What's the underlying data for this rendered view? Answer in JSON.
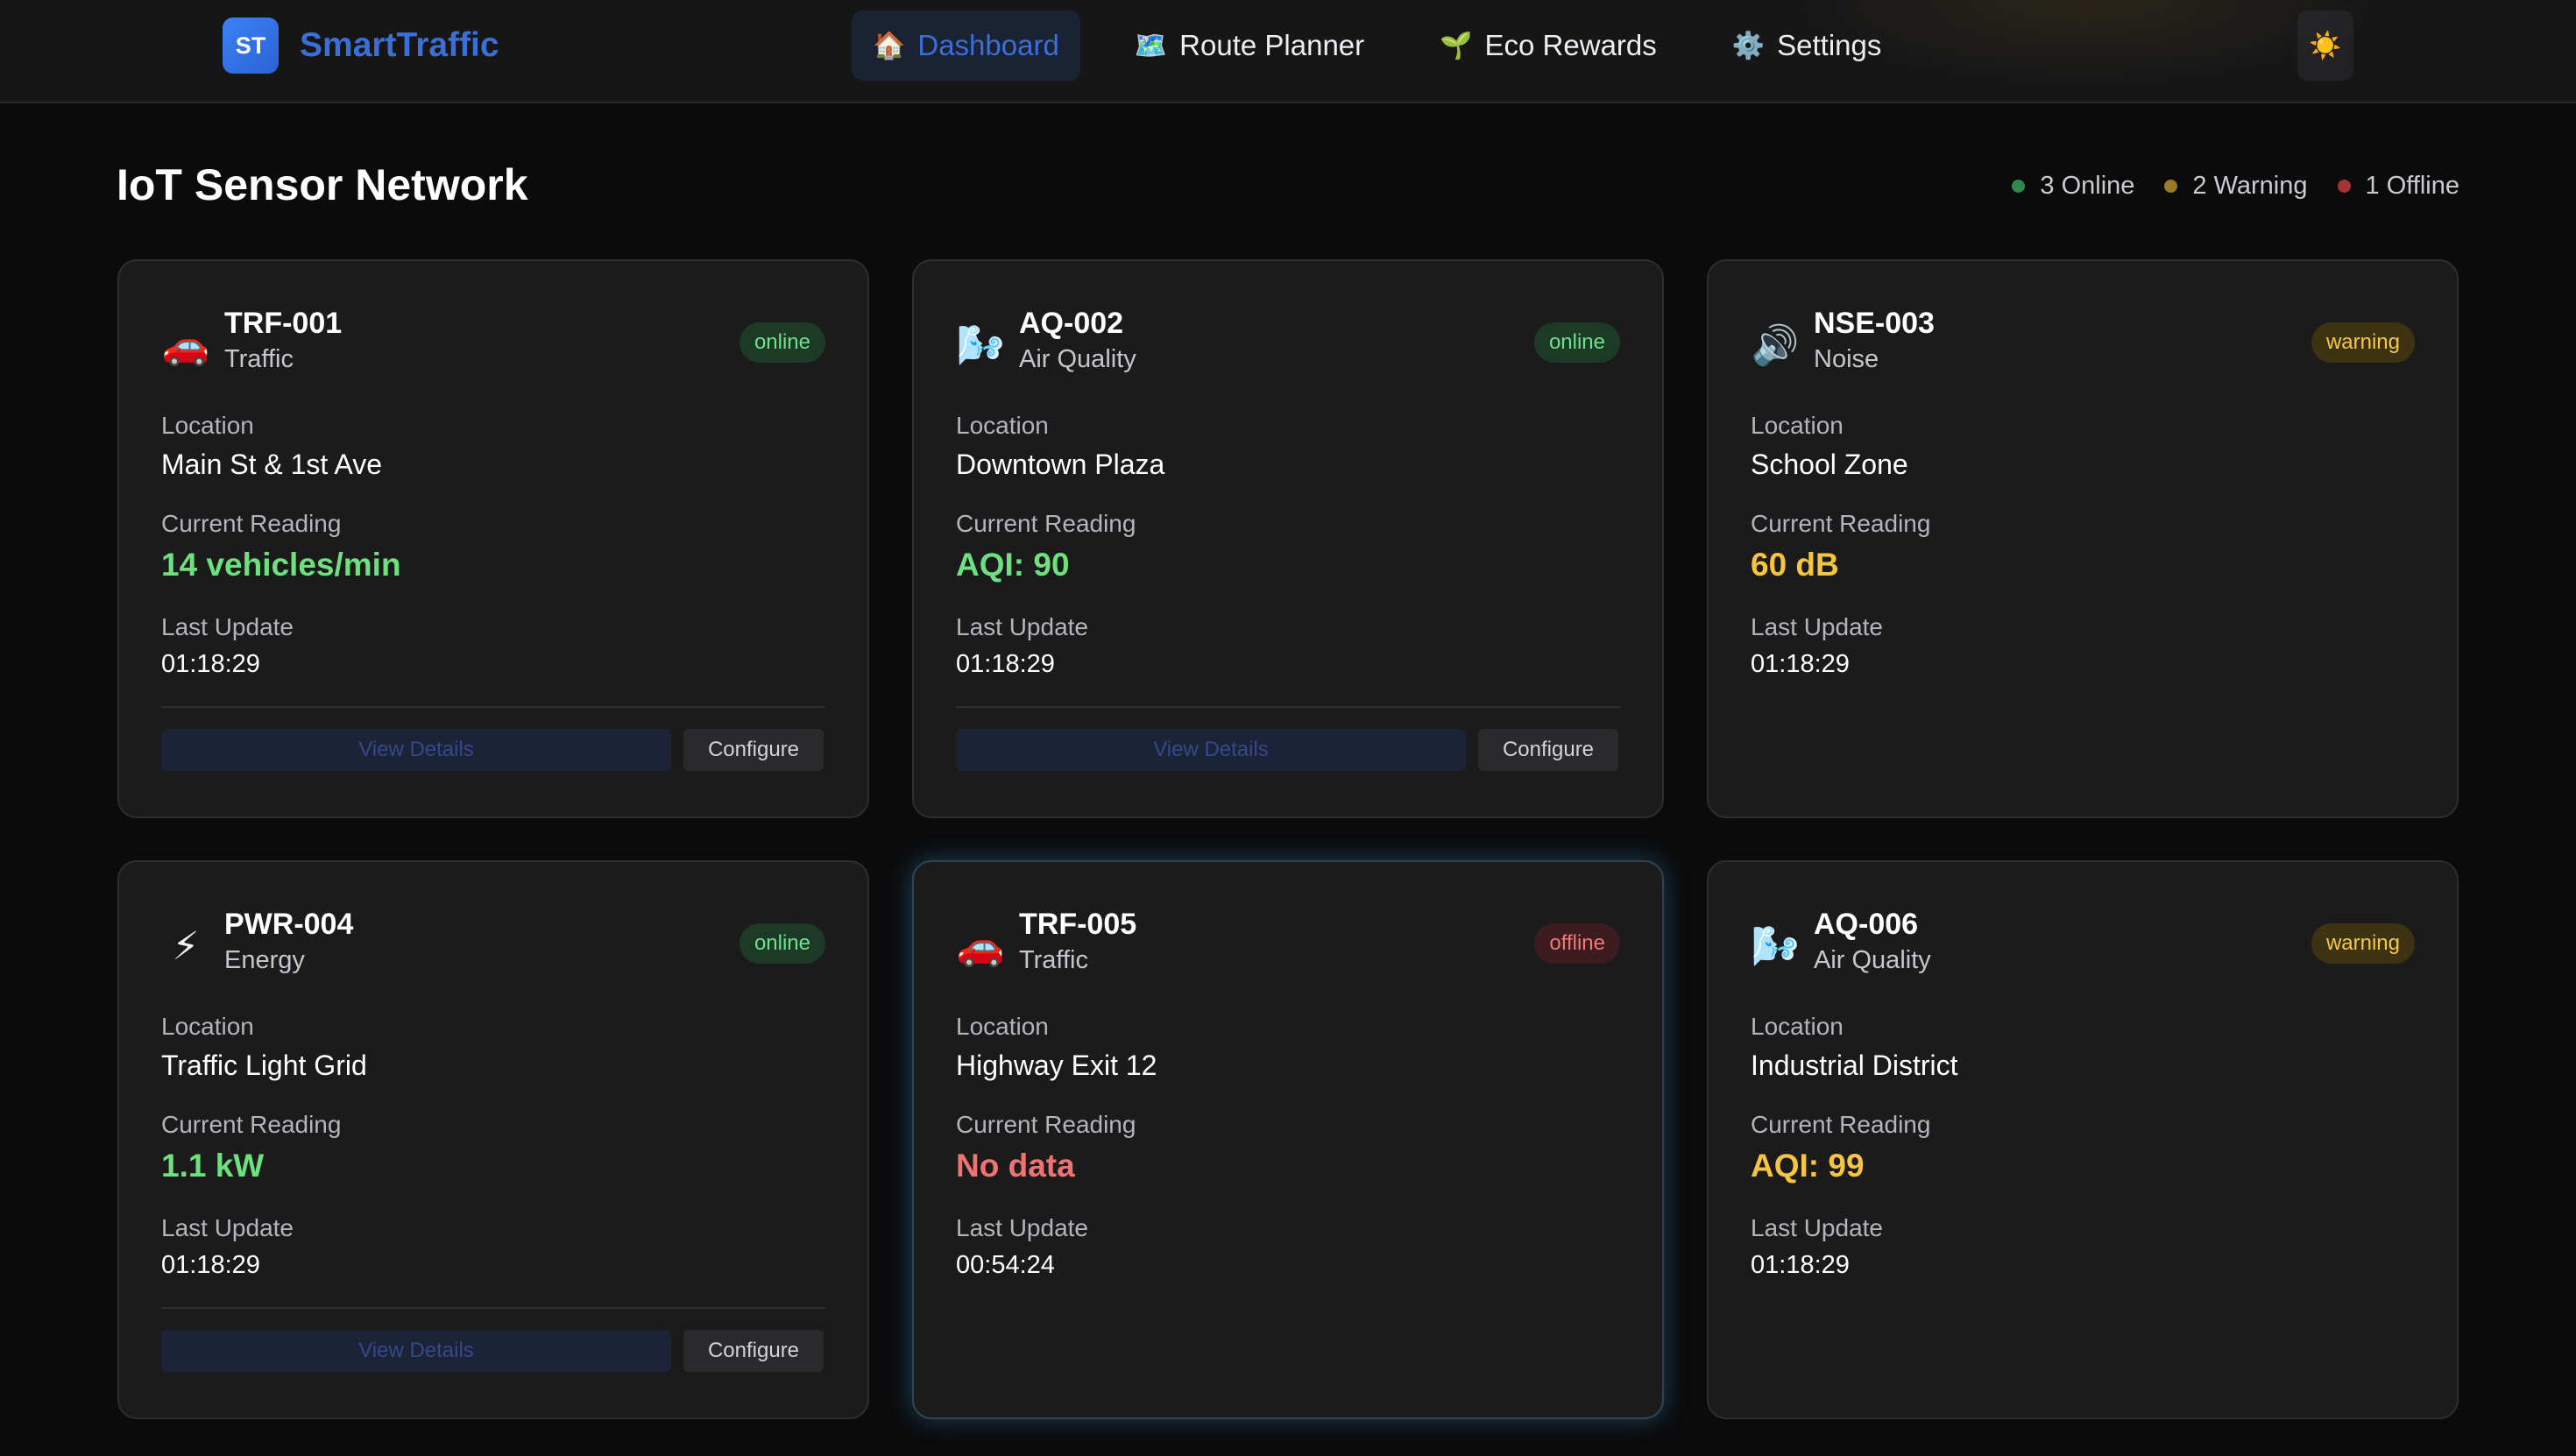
{
  "brand": {
    "logo_text": "ST",
    "name": "SmartTraffic"
  },
  "nav": [
    {
      "icon": "🏠",
      "label": "Dashboard",
      "active": true
    },
    {
      "icon": "🗺️",
      "label": "Route Planner",
      "active": false
    },
    {
      "icon": "🌱",
      "label": "Eco Rewards",
      "active": false
    },
    {
      "icon": "⚙️",
      "label": "Settings",
      "active": false
    }
  ],
  "theme_toggle": {
    "icon": "☀️"
  },
  "page": {
    "title": "IoT Sensor Network"
  },
  "summary": [
    {
      "text": "3 Online",
      "color": "#2f8a4a"
    },
    {
      "text": "2 Warning",
      "color": "#9a7a22"
    },
    {
      "text": "1 Offline",
      "color": "#a33535"
    }
  ],
  "labels": {
    "location": "Location",
    "current_reading": "Current Reading",
    "last_update": "Last Update",
    "view_details": "View Details",
    "configure": "Configure"
  },
  "sensors": [
    {
      "id": "TRF-001",
      "type": "Traffic",
      "icon": "🚗",
      "status": "online",
      "location": "Main St & 1st Ave",
      "reading": "14 vehicles/min",
      "last_update": "01:18:29"
    },
    {
      "id": "AQ-002",
      "type": "Air Quality",
      "icon": "🌬️",
      "status": "online",
      "location": "Downtown Plaza",
      "reading": "AQI: 90",
      "last_update": "01:18:29"
    },
    {
      "id": "NSE-003",
      "type": "Noise",
      "icon": "🔊",
      "status": "warning",
      "location": "School Zone",
      "reading": "60 dB",
      "last_update": "01:18:29"
    },
    {
      "id": "PWR-004",
      "type": "Energy",
      "icon": "⚡",
      "status": "online",
      "location": "Traffic Light Grid",
      "reading": "1.1 kW",
      "last_update": "01:18:29"
    },
    {
      "id": "TRF-005",
      "type": "Traffic",
      "icon": "🚗",
      "status": "offline",
      "location": "Highway Exit 12",
      "reading": "No data",
      "last_update": "00:54:24"
    },
    {
      "id": "AQ-006",
      "type": "Air Quality",
      "icon": "🌬️",
      "status": "warning",
      "location": "Industrial District",
      "reading": "AQI: 99",
      "last_update": "01:18:29"
    }
  ]
}
